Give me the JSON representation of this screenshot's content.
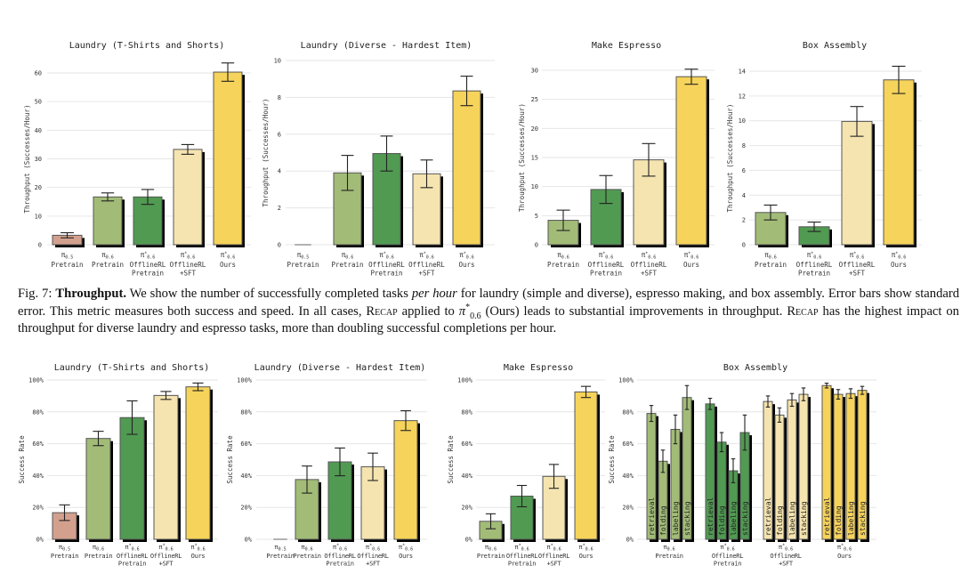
{
  "colors": {
    "pi05_pretrain": "#d4a08e",
    "pi06_pretrain": "#a2bc77",
    "offlinerl_pretrain": "#519a52",
    "offlinerl_sft": "#f5e4b0",
    "ours": "#f6d35a",
    "shadow": "#000000",
    "grid": "#e6e6e6"
  },
  "caption": {
    "fig_label": "Fig. 7:",
    "bold": "Throughput.",
    "text1": " We show the number of successfully completed tasks ",
    "italic": "per hour",
    "text2": " for laundry (simple and diverse), espresso making, and box assembly. Error bars show standard error. This metric measures both success and speed. In all cases, ",
    "recap1": "Recap",
    "text3": " applied to ",
    "math_symbol": "π",
    "math_sup": "*",
    "math_sub": "0.6",
    "text4": " (Ours) leads to substantial improvements in throughput. ",
    "recap2": "Recap",
    "text5": " has the highest impact on throughput for diverse laundry and espresso tasks, more than doubling successful completions per hour."
  },
  "chart_data": [
    {
      "type": "bar",
      "title": "Laundry (T-Shirts and Shorts)",
      "ylabel": "Throughput (Successes/Hour)",
      "ylim": [
        0,
        60
      ],
      "yticks": [
        0,
        10,
        20,
        30,
        40,
        50,
        60
      ],
      "tick_suffix": "",
      "grid": true,
      "categories": [
        {
          "sym": "π",
          "sup": "",
          "sub": "0.5",
          "lines": [
            "Pretrain"
          ],
          "color": "pi05_pretrain"
        },
        {
          "sym": "π",
          "sup": "",
          "sub": "0.6",
          "lines": [
            "Pretrain"
          ],
          "color": "pi06_pretrain"
        },
        {
          "sym": "π",
          "sup": "*",
          "sub": "0.6",
          "lines": [
            "OfflineRL",
            "Pretrain"
          ],
          "color": "offlinerl_pretrain"
        },
        {
          "sym": "π",
          "sup": "*",
          "sub": "0.6",
          "lines": [
            "OfflineRL",
            "+SFT"
          ],
          "color": "offlinerl_sft"
        },
        {
          "sym": "π",
          "sup": "*",
          "sub": "0.6",
          "lines": [
            "Ours"
          ],
          "color": "ours"
        }
      ],
      "values": [
        3.3,
        16.7,
        16.7,
        33.3,
        60.3
      ],
      "errors": [
        0.9,
        1.4,
        2.6,
        1.7,
        3.2
      ]
    },
    {
      "type": "bar",
      "title": "Laundry (Diverse - Hardest Item)",
      "ylabel": "Throughput (Successes/Hour)",
      "ylim": [
        0,
        10
      ],
      "yticks": [
        0,
        2,
        4,
        6,
        8,
        10
      ],
      "tick_suffix": "",
      "grid": true,
      "categories": [
        {
          "sym": "π",
          "sup": "",
          "sub": "0.5",
          "lines": [
            "Pretrain"
          ],
          "color": "pi05_pretrain"
        },
        {
          "sym": "π",
          "sup": "",
          "sub": "0.6",
          "lines": [
            "Pretrain"
          ],
          "color": "pi06_pretrain"
        },
        {
          "sym": "π",
          "sup": "*",
          "sub": "0.6",
          "lines": [
            "OfflineRL",
            "Pretrain"
          ],
          "color": "offlinerl_pretrain"
        },
        {
          "sym": "π",
          "sup": "*",
          "sub": "0.6",
          "lines": [
            "OfflineRL",
            "+SFT"
          ],
          "color": "offlinerl_sft"
        },
        {
          "sym": "π",
          "sup": "*",
          "sub": "0.6",
          "lines": [
            "Ours"
          ],
          "color": "ours"
        }
      ],
      "values": [
        0,
        3.9,
        4.95,
        3.85,
        8.35
      ],
      "errors": [
        0,
        0.95,
        0.95,
        0.75,
        0.8
      ]
    },
    {
      "type": "bar",
      "title": "Make Espresso",
      "ylabel": "Throughput (Successes/Hour)",
      "ylim": [
        0,
        30
      ],
      "yticks": [
        0,
        5,
        10,
        15,
        20,
        25,
        30
      ],
      "tick_suffix": "",
      "grid": true,
      "categories": [
        {
          "sym": "π",
          "sup": "",
          "sub": "0.6",
          "lines": [
            "Pretrain"
          ],
          "color": "pi06_pretrain"
        },
        {
          "sym": "π",
          "sup": "*",
          "sub": "0.6",
          "lines": [
            "OfflineRL",
            "Pretrain"
          ],
          "color": "offlinerl_pretrain"
        },
        {
          "sym": "π",
          "sup": "*",
          "sub": "0.6",
          "lines": [
            "OfflineRL",
            "+SFT"
          ],
          "color": "offlinerl_sft"
        },
        {
          "sym": "π",
          "sup": "*",
          "sub": "0.6",
          "lines": [
            "Ours"
          ],
          "color": "ours"
        }
      ],
      "values": [
        4.2,
        9.5,
        14.6,
        28.9
      ],
      "errors": [
        1.75,
        2.4,
        2.8,
        1.3
      ]
    },
    {
      "type": "bar",
      "title": "Box Assembly",
      "ylabel": "Throughput (Successes/Hour)",
      "ylim": [
        0,
        14
      ],
      "yticks": [
        0,
        2,
        4,
        6,
        8,
        10,
        12,
        14
      ],
      "tick_suffix": "",
      "grid": true,
      "categories": [
        {
          "sym": "π",
          "sup": "",
          "sub": "0.6",
          "lines": [
            "Pretrain"
          ],
          "color": "pi06_pretrain"
        },
        {
          "sym": "π",
          "sup": "*",
          "sub": "0.6",
          "lines": [
            "OfflineRL",
            "Pretrain"
          ],
          "color": "offlinerl_pretrain"
        },
        {
          "sym": "π",
          "sup": "*",
          "sub": "0.6",
          "lines": [
            "OfflineRL",
            "+SFT"
          ],
          "color": "offlinerl_sft"
        },
        {
          "sym": "π",
          "sup": "*",
          "sub": "0.6",
          "lines": [
            "Ours"
          ],
          "color": "ours"
        }
      ],
      "values": [
        2.6,
        1.45,
        9.95,
        13.3
      ],
      "errors": [
        0.6,
        0.38,
        1.2,
        1.1
      ]
    },
    {
      "type": "bar",
      "title": "Laundry (T-Shirts and Shorts)",
      "ylabel": "Success Rate",
      "ylim": [
        0,
        100
      ],
      "yticks": [
        0,
        20,
        40,
        60,
        80,
        100
      ],
      "tick_suffix": "%",
      "grid": true,
      "categories": [
        {
          "sym": "π",
          "sup": "",
          "sub": "0.5",
          "lines": [
            "Pretrain"
          ],
          "color": "pi05_pretrain"
        },
        {
          "sym": "π",
          "sup": "",
          "sub": "0.6",
          "lines": [
            "Pretrain"
          ],
          "color": "pi06_pretrain"
        },
        {
          "sym": "π",
          "sup": "*",
          "sub": "0.6",
          "lines": [
            "OfflineRL",
            "Pretrain"
          ],
          "color": "offlinerl_pretrain"
        },
        {
          "sym": "π",
          "sup": "*",
          "sub": "0.6",
          "lines": [
            "OfflineRL",
            "+SFT"
          ],
          "color": "offlinerl_sft"
        },
        {
          "sym": "π",
          "sup": "*",
          "sub": "0.6",
          "lines": [
            "Ours"
          ],
          "color": "ours"
        }
      ],
      "values": [
        16.7,
        63.3,
        76.4,
        90.3,
        95.7
      ],
      "errors": [
        4.9,
        4.5,
        10.5,
        2.5,
        2.4
      ]
    },
    {
      "type": "bar",
      "title": "Laundry (Diverse - Hardest Item)",
      "ylabel": "Success Rate",
      "ylim": [
        0,
        100
      ],
      "yticks": [
        0,
        20,
        40,
        60,
        80,
        100
      ],
      "tick_suffix": "%",
      "grid": true,
      "categories": [
        {
          "sym": "π",
          "sup": "",
          "sub": "0.5",
          "lines": [
            "Pretrain"
          ],
          "color": "pi05_pretrain"
        },
        {
          "sym": "π",
          "sup": "",
          "sub": "0.6",
          "lines": [
            "Pretrain"
          ],
          "color": "pi06_pretrain"
        },
        {
          "sym": "π",
          "sup": "*",
          "sub": "0.6",
          "lines": [
            "OfflineRL",
            "Pretrain"
          ],
          "color": "offlinerl_pretrain"
        },
        {
          "sym": "π",
          "sup": "*",
          "sub": "0.6",
          "lines": [
            "OfflineRL",
            "+SFT"
          ],
          "color": "offlinerl_sft"
        },
        {
          "sym": "π",
          "sup": "*",
          "sub": "0.6",
          "lines": [
            "Ours"
          ],
          "color": "ours"
        }
      ],
      "values": [
        0,
        37.5,
        48.6,
        45.5,
        74.5
      ],
      "errors": [
        0,
        8.5,
        8.7,
        8.6,
        6.2
      ]
    },
    {
      "type": "bar",
      "title": "Make Espresso",
      "ylabel": "Success Rate",
      "ylim": [
        0,
        100
      ],
      "yticks": [
        0,
        20,
        40,
        60,
        80,
        100
      ],
      "tick_suffix": "%",
      "grid": true,
      "categories": [
        {
          "sym": "π",
          "sup": "",
          "sub": "0.6",
          "lines": [
            "Pretrain"
          ],
          "color": "pi06_pretrain"
        },
        {
          "sym": "π",
          "sup": "*",
          "sub": "0.6",
          "lines": [
            "OfflineRL",
            "Pretrain"
          ],
          "color": "offlinerl_pretrain"
        },
        {
          "sym": "π",
          "sup": "*",
          "sub": "0.6",
          "lines": [
            "OfflineRL",
            "+SFT"
          ],
          "color": "offlinerl_sft"
        },
        {
          "sym": "π",
          "sup": "*",
          "sub": "0.6",
          "lines": [
            "Ours"
          ],
          "color": "ours"
        }
      ],
      "values": [
        11.3,
        27.1,
        39.5,
        92.5
      ],
      "errors": [
        4.7,
        6.7,
        7.5,
        3.5
      ]
    },
    {
      "type": "grouped-bar",
      "title": "Box Assembly",
      "ylabel": "Success Rate",
      "ylim": [
        0,
        100
      ],
      "yticks": [
        0,
        20,
        40,
        60,
        80,
        100
      ],
      "tick_suffix": "%",
      "grid": true,
      "subcategories": [
        "retrieval",
        "folding",
        "labeling",
        "stacking"
      ],
      "groups": [
        {
          "sym": "π",
          "sup": "",
          "sub": "0.6",
          "lines": [
            "Pretrain"
          ],
          "color": "pi06_pretrain",
          "values": [
            79,
            49,
            69,
            89
          ],
          "errors": [
            5,
            7,
            9,
            7.5
          ]
        },
        {
          "sym": "π",
          "sup": "*",
          "sub": "0.6",
          "lines": [
            "OfflineRL",
            "Pretrain"
          ],
          "color": "offlinerl_pretrain",
          "values": [
            85,
            61,
            43,
            67
          ],
          "errors": [
            3.5,
            6,
            7.5,
            11
          ]
        },
        {
          "sym": "π",
          "sup": "*",
          "sub": "0.6",
          "lines": [
            "OfflineRL",
            "+SFT"
          ],
          "color": "offlinerl_sft",
          "values": [
            86.5,
            78,
            87.5,
            91
          ],
          "errors": [
            3.5,
            4.5,
            4,
            4
          ]
        },
        {
          "sym": "π",
          "sup": "*",
          "sub": "0.6",
          "lines": [
            "Ours"
          ],
          "color": "ours",
          "values": [
            96.5,
            91,
            91.5,
            93.5
          ],
          "errors": [
            1.5,
            3,
            3,
            2.5
          ]
        }
      ]
    }
  ]
}
